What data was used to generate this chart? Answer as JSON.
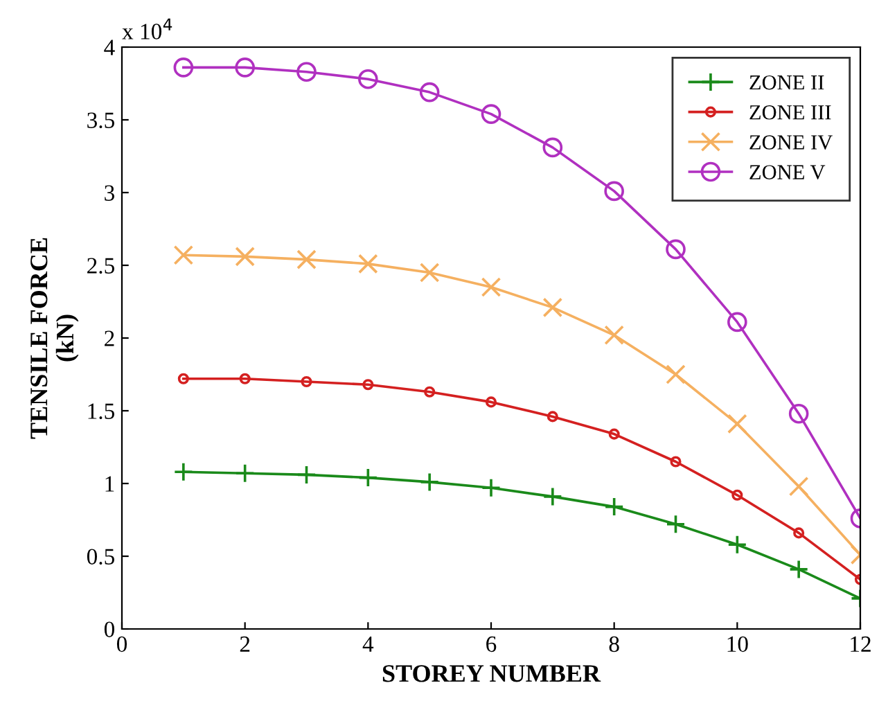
{
  "chart_data": {
    "type": "line",
    "xlabel": "STOREY NUMBER",
    "ylabel": "TENSILE FORCE\n(kN)",
    "x": [
      1,
      2,
      3,
      4,
      5,
      6,
      7,
      8,
      9,
      10,
      11,
      12
    ],
    "series": [
      {
        "name": "ZONE II",
        "color": "#1a8a1a",
        "marker": "plus",
        "values": [
          1.08,
          1.07,
          1.06,
          1.04,
          1.01,
          0.97,
          0.91,
          0.84,
          0.72,
          0.58,
          0.41,
          0.21
        ]
      },
      {
        "name": "ZONE III",
        "color": "#d42020",
        "marker": "point",
        "values": [
          1.72,
          1.72,
          1.7,
          1.68,
          1.63,
          1.56,
          1.46,
          1.34,
          1.15,
          0.92,
          0.66,
          0.34
        ]
      },
      {
        "name": "ZONE IV",
        "color": "#f5b060",
        "marker": "cross",
        "values": [
          2.57,
          2.56,
          2.54,
          2.51,
          2.45,
          2.35,
          2.21,
          2.02,
          1.75,
          1.41,
          0.98,
          0.51
        ]
      },
      {
        "name": "ZONE V",
        "color": "#b030c0",
        "marker": "circle",
        "values": [
          3.86,
          3.86,
          3.83,
          3.78,
          3.69,
          3.54,
          3.31,
          3.01,
          2.61,
          2.11,
          1.48,
          0.76
        ]
      }
    ],
    "xlim": [
      0,
      12
    ],
    "xticks": [
      0,
      2,
      4,
      6,
      8,
      10,
      12
    ],
    "ylim": [
      0,
      4
    ],
    "yticks": [
      0,
      0.5,
      1,
      1.5,
      2,
      2.5,
      3,
      3.5,
      4
    ],
    "annotations": [
      "x 10$^{4}$"
    ],
    "legend": "top right",
    "grid": false
  }
}
